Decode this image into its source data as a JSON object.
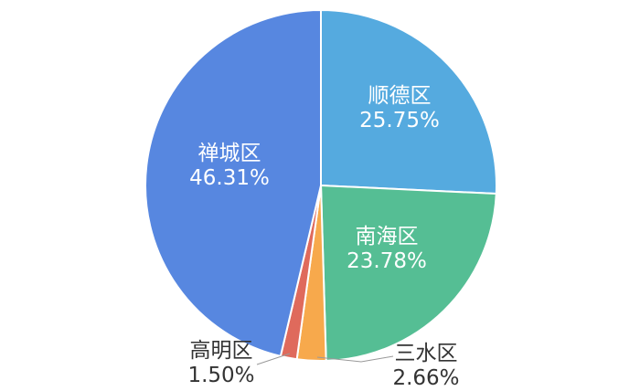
{
  "chart_data": {
    "type": "pie",
    "title": "",
    "background": "#ffffff",
    "direction": "clockwise",
    "start_position": "top",
    "slice_border_color": "#ffffff",
    "label_text_color_inside": "#ffffff",
    "label_text_color_outside": "#333333",
    "leader_line_color": "#999999",
    "slices": [
      {
        "name": "顺德区",
        "value": 25.75,
        "label": "25.75%",
        "color": "#55AADF",
        "label_position": "inside"
      },
      {
        "name": "南海区",
        "value": 23.78,
        "label": "23.78%",
        "color": "#55BE94",
        "label_position": "inside"
      },
      {
        "name": "三水区",
        "value": 2.66,
        "label": "2.66%",
        "color": "#F7A94C",
        "label_position": "outside"
      },
      {
        "name": "高明区",
        "value": 1.5,
        "label": "1.50%",
        "color": "#DF6A5C",
        "label_position": "outside"
      },
      {
        "name": "禅城区",
        "value": 46.31,
        "label": "46.31%",
        "color": "#5787E0",
        "label_position": "inside"
      }
    ]
  }
}
